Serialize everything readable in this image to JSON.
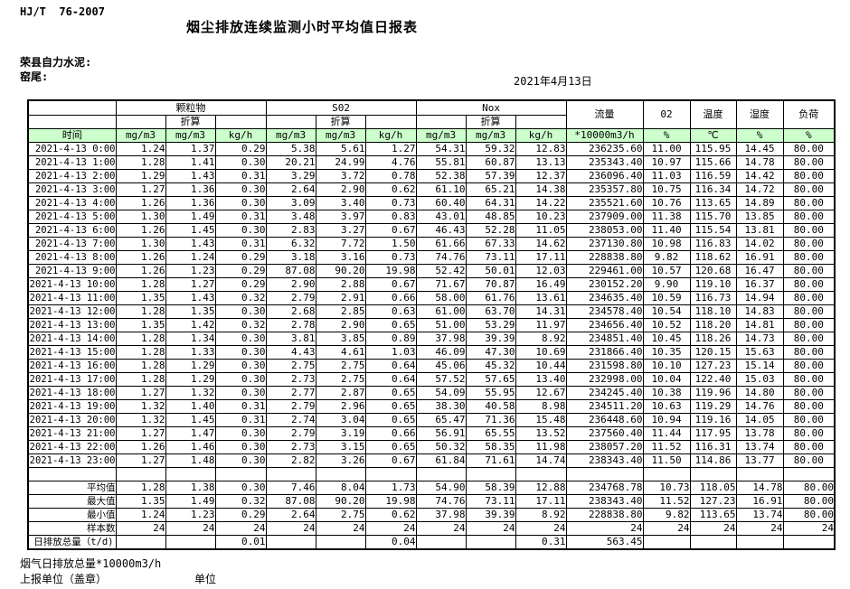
{
  "meta": {
    "standard": "HJ/T  76-2007",
    "title": "烟尘排放连续监测小时平均值日报表",
    "company": "荣县自力水泥:",
    "location": "窑尾:",
    "date": "2021年4月13日"
  },
  "colors": {
    "header_green": "#ccffcc"
  },
  "table": {
    "time_header": "时间",
    "groups": [
      "颗粒物",
      "S02",
      "Nox"
    ],
    "converted_label": "折算",
    "flow_header": "流量",
    "o2_header": "02",
    "temp_header": "温度",
    "humidity_header": "湿度",
    "load_header": "负荷",
    "units": [
      "mg/m3",
      "mg/m3",
      "kg/h",
      "mg/m3",
      "mg/m3",
      "kg/h",
      "mg/m3",
      "mg/m3",
      "kg/h",
      "*10000m3/h",
      "%",
      "℃",
      "%",
      "%"
    ],
    "rows": [
      {
        "t": "2021-4-13 0:00",
        "v": [
          "1.24",
          "1.37",
          "0.29",
          "5.38",
          "5.61",
          "1.27",
          "54.31",
          "59.32",
          "12.83",
          "236235.60",
          "11.00",
          "115.95",
          "14.45",
          "80.00"
        ]
      },
      {
        "t": "2021-4-13 1:00",
        "v": [
          "1.28",
          "1.41",
          "0.30",
          "20.21",
          "24.99",
          "4.76",
          "55.81",
          "60.87",
          "13.13",
          "235343.40",
          "10.97",
          "115.66",
          "14.78",
          "80.00"
        ]
      },
      {
        "t": "2021-4-13 2:00",
        "v": [
          "1.29",
          "1.43",
          "0.31",
          "3.29",
          "3.72",
          "0.78",
          "52.38",
          "57.39",
          "12.37",
          "236096.40",
          "11.03",
          "116.59",
          "14.42",
          "80.00"
        ]
      },
      {
        "t": "2021-4-13 3:00",
        "v": [
          "1.27",
          "1.36",
          "0.30",
          "2.64",
          "2.90",
          "0.62",
          "61.10",
          "65.21",
          "14.38",
          "235357.80",
          "10.75",
          "116.34",
          "14.72",
          "80.00"
        ]
      },
      {
        "t": "2021-4-13 4:00",
        "v": [
          "1.26",
          "1.36",
          "0.30",
          "3.09",
          "3.40",
          "0.73",
          "60.40",
          "64.31",
          "14.22",
          "235521.60",
          "10.76",
          "113.65",
          "14.89",
          "80.00"
        ]
      },
      {
        "t": "2021-4-13 5:00",
        "v": [
          "1.30",
          "1.49",
          "0.31",
          "3.48",
          "3.97",
          "0.83",
          "43.01",
          "48.85",
          "10.23",
          "237909.00",
          "11.38",
          "115.70",
          "13.85",
          "80.00"
        ]
      },
      {
        "t": "2021-4-13 6:00",
        "v": [
          "1.26",
          "1.45",
          "0.30",
          "2.83",
          "3.27",
          "0.67",
          "46.43",
          "52.28",
          "11.05",
          "238053.00",
          "11.40",
          "115.54",
          "13.81",
          "80.00"
        ]
      },
      {
        "t": "2021-4-13 7:00",
        "v": [
          "1.30",
          "1.43",
          "0.31",
          "6.32",
          "7.72",
          "1.50",
          "61.66",
          "67.33",
          "14.62",
          "237130.80",
          "10.98",
          "116.83",
          "14.02",
          "80.00"
        ]
      },
      {
        "t": "2021-4-13 8:00",
        "v": [
          "1.26",
          "1.24",
          "0.29",
          "3.18",
          "3.16",
          "0.73",
          "74.76",
          "73.11",
          "17.11",
          "228838.80",
          "9.82",
          "118.62",
          "16.91",
          "80.00"
        ]
      },
      {
        "t": "2021-4-13 9:00",
        "v": [
          "1.26",
          "1.23",
          "0.29",
          "87.08",
          "90.20",
          "19.98",
          "52.42",
          "50.01",
          "12.03",
          "229461.00",
          "10.57",
          "120.68",
          "16.47",
          "80.00"
        ]
      },
      {
        "t": "2021-4-13 10:00",
        "v": [
          "1.28",
          "1.27",
          "0.29",
          "2.90",
          "2.88",
          "0.67",
          "71.67",
          "70.87",
          "16.49",
          "230152.20",
          "9.90",
          "119.10",
          "16.37",
          "80.00"
        ]
      },
      {
        "t": "2021-4-13 11:00",
        "v": [
          "1.35",
          "1.43",
          "0.32",
          "2.79",
          "2.91",
          "0.66",
          "58.00",
          "61.76",
          "13.61",
          "234635.40",
          "10.59",
          "116.73",
          "14.94",
          "80.00"
        ]
      },
      {
        "t": "2021-4-13 12:00",
        "v": [
          "1.28",
          "1.35",
          "0.30",
          "2.68",
          "2.85",
          "0.63",
          "61.00",
          "63.70",
          "14.31",
          "234578.40",
          "10.54",
          "118.10",
          "14.83",
          "80.00"
        ]
      },
      {
        "t": "2021-4-13 13:00",
        "v": [
          "1.35",
          "1.42",
          "0.32",
          "2.78",
          "2.90",
          "0.65",
          "51.00",
          "53.29",
          "11.97",
          "234656.40",
          "10.52",
          "118.20",
          "14.81",
          "80.00"
        ]
      },
      {
        "t": "2021-4-13 14:00",
        "v": [
          "1.28",
          "1.34",
          "0.30",
          "3.81",
          "3.85",
          "0.89",
          "37.98",
          "39.39",
          "8.92",
          "234851.40",
          "10.45",
          "118.26",
          "14.73",
          "80.00"
        ]
      },
      {
        "t": "2021-4-13 15:00",
        "v": [
          "1.28",
          "1.33",
          "0.30",
          "4.43",
          "4.61",
          "1.03",
          "46.09",
          "47.30",
          "10.69",
          "231866.40",
          "10.35",
          "120.15",
          "15.63",
          "80.00"
        ]
      },
      {
        "t": "2021-4-13 16:00",
        "v": [
          "1.28",
          "1.29",
          "0.30",
          "2.75",
          "2.75",
          "0.64",
          "45.06",
          "45.32",
          "10.44",
          "231598.80",
          "10.10",
          "127.23",
          "15.14",
          "80.00"
        ]
      },
      {
        "t": "2021-4-13 17:00",
        "v": [
          "1.28",
          "1.29",
          "0.30",
          "2.73",
          "2.75",
          "0.64",
          "57.52",
          "57.65",
          "13.40",
          "232998.00",
          "10.04",
          "122.40",
          "15.03",
          "80.00"
        ]
      },
      {
        "t": "2021-4-13 18:00",
        "v": [
          "1.27",
          "1.32",
          "0.30",
          "2.77",
          "2.87",
          "0.65",
          "54.09",
          "55.95",
          "12.67",
          "234245.40",
          "10.38",
          "119.96",
          "14.80",
          "80.00"
        ]
      },
      {
        "t": "2021-4-13 19:00",
        "v": [
          "1.32",
          "1.40",
          "0.31",
          "2.79",
          "2.96",
          "0.65",
          "38.30",
          "40.58",
          "8.98",
          "234511.20",
          "10.63",
          "119.29",
          "14.76",
          "80.00"
        ]
      },
      {
        "t": "2021-4-13 20:00",
        "v": [
          "1.32",
          "1.45",
          "0.31",
          "2.74",
          "3.04",
          "0.65",
          "65.47",
          "71.36",
          "15.48",
          "236448.60",
          "10.94",
          "119.16",
          "14.05",
          "80.00"
        ]
      },
      {
        "t": "2021-4-13 21:00",
        "v": [
          "1.27",
          "1.47",
          "0.30",
          "2.79",
          "3.19",
          "0.66",
          "56.91",
          "65.55",
          "13.52",
          "237560.40",
          "11.44",
          "117.95",
          "13.78",
          "80.00"
        ]
      },
      {
        "t": "2021-4-13 22:00",
        "v": [
          "1.26",
          "1.46",
          "0.30",
          "2.73",
          "3.15",
          "0.65",
          "50.32",
          "58.35",
          "11.98",
          "238057.20",
          "11.52",
          "116.31",
          "13.74",
          "80.00"
        ]
      },
      {
        "t": "2021-4-13 23:00",
        "v": [
          "1.27",
          "1.48",
          "0.30",
          "2.82",
          "3.26",
          "0.67",
          "61.84",
          "71.61",
          "14.74",
          "238343.40",
          "11.50",
          "114.86",
          "13.77",
          "80.00"
        ]
      }
    ],
    "summary": [
      {
        "label": "平均值",
        "v": [
          "1.28",
          "1.38",
          "0.30",
          "7.46",
          "8.04",
          "1.73",
          "54.90",
          "58.39",
          "12.88",
          "234768.78",
          "10.73",
          "118.05",
          "14.78",
          "80.00"
        ]
      },
      {
        "label": "最大值",
        "v": [
          "1.35",
          "1.49",
          "0.32",
          "87.08",
          "90.20",
          "19.98",
          "74.76",
          "73.11",
          "17.11",
          "238343.40",
          "11.52",
          "127.23",
          "16.91",
          "80.00"
        ]
      },
      {
        "label": "最小值",
        "v": [
          "1.24",
          "1.23",
          "0.29",
          "2.64",
          "2.75",
          "0.62",
          "37.98",
          "39.39",
          "8.92",
          "228838.80",
          "9.82",
          "113.65",
          "13.74",
          "80.00"
        ]
      },
      {
        "label": "样本数",
        "v": [
          "24",
          "24",
          "24",
          "24",
          "24",
          "24",
          "24",
          "24",
          "24",
          "24",
          "24",
          "24",
          "24",
          "24"
        ]
      }
    ],
    "total_row": {
      "label": "日排放总量（t/d)",
      "v": [
        "",
        "",
        "0.01",
        "",
        "",
        "0.04",
        "",
        "",
        "0.31",
        "563.45",
        "",
        "",
        "",
        ""
      ]
    }
  },
  "footer": {
    "note": "烟气日排放总量*10000m3/h",
    "report_unit": "上报单位（盖章）",
    "unit": "单位"
  }
}
